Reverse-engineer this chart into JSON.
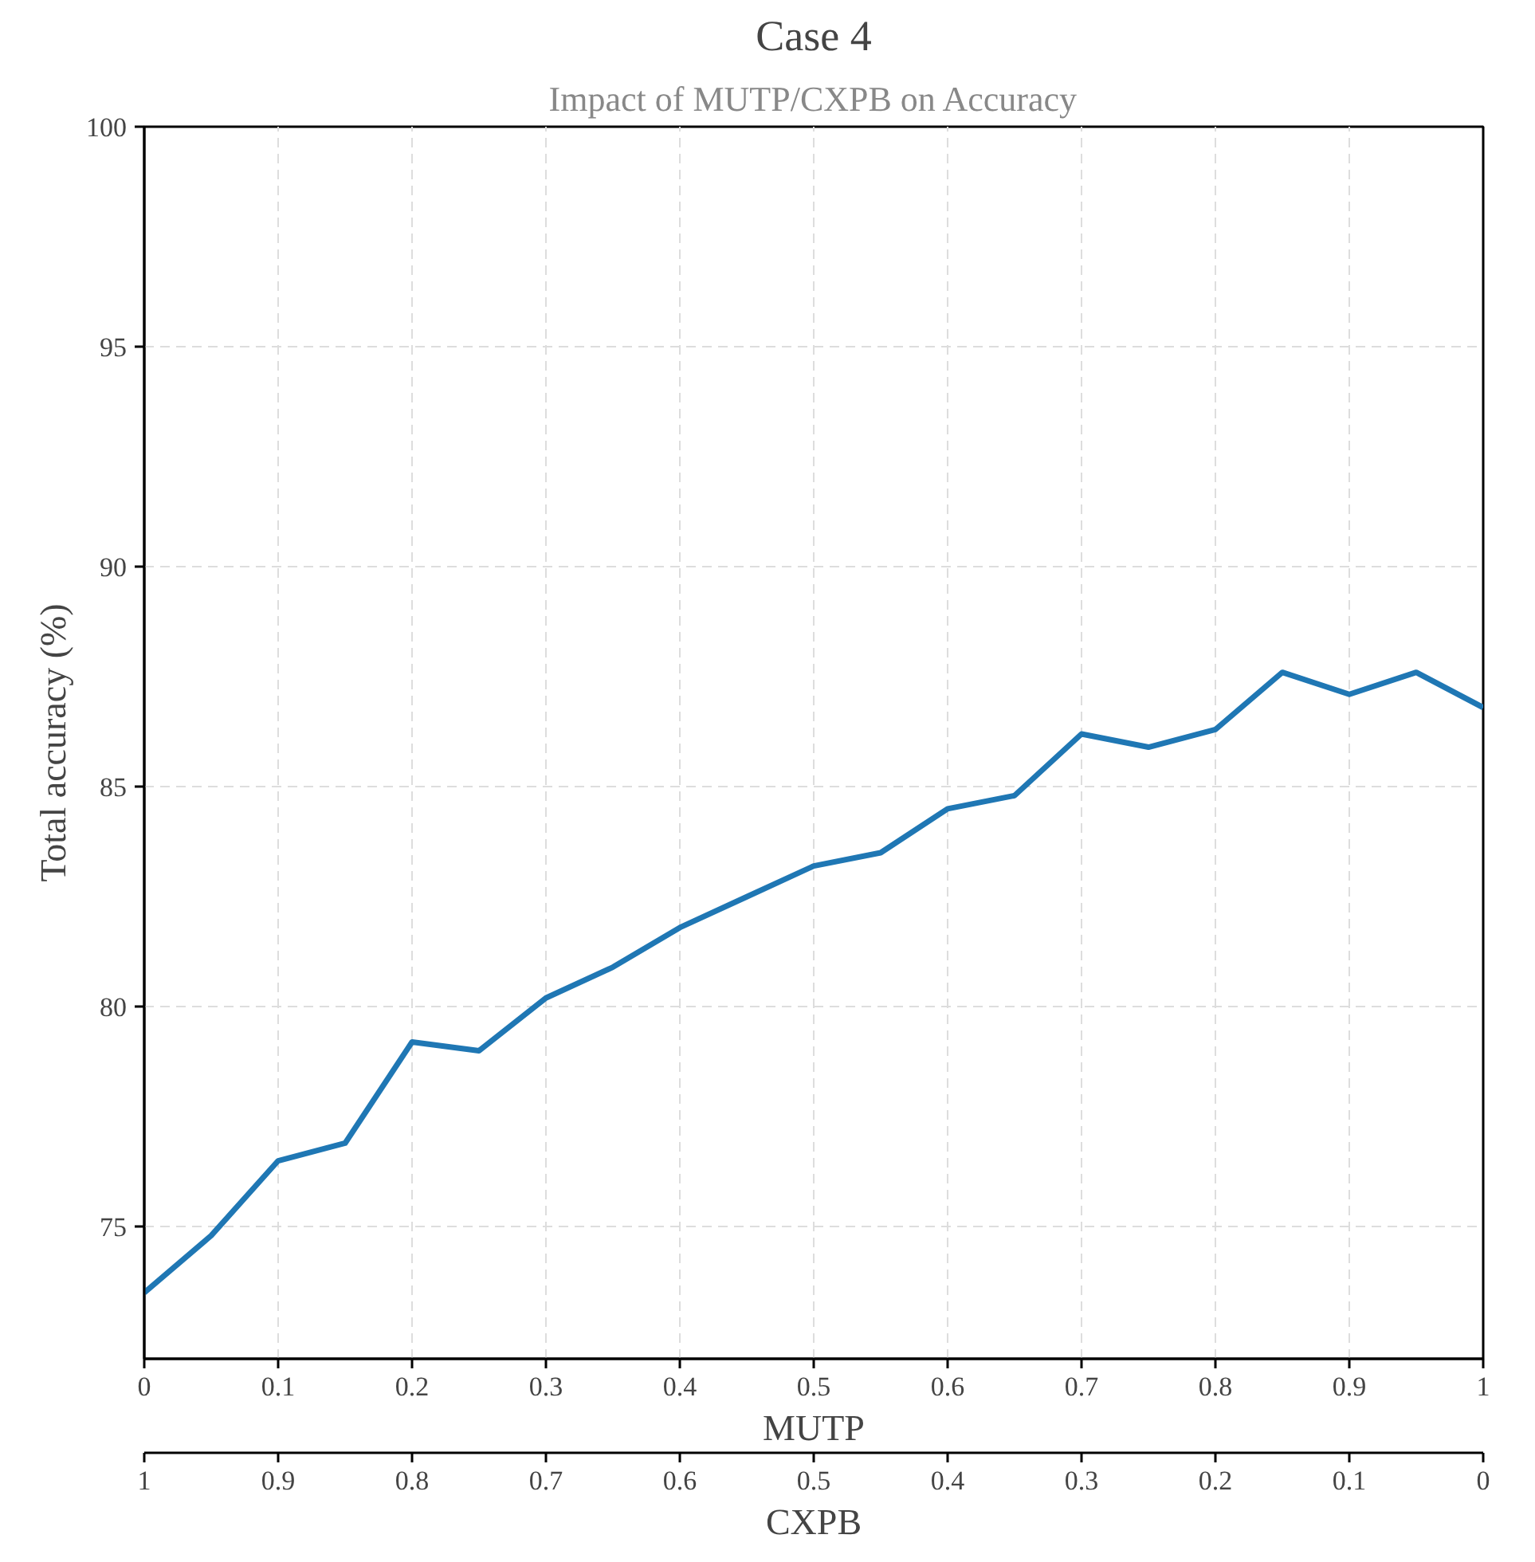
{
  "chart_data": {
    "type": "line",
    "title": "Case 4",
    "subtitle": "Impact of MUTP/CXPB on Accuracy",
    "xlabel": "MUTP",
    "ylabel": "Total accuracy (%)",
    "x2label": "CXPB",
    "x": [
      0,
      0.05,
      0.1,
      0.15,
      0.2,
      0.25,
      0.3,
      0.35,
      0.4,
      0.45,
      0.5,
      0.55,
      0.6,
      0.65,
      0.7,
      0.75,
      0.8,
      0.85,
      0.9,
      0.95,
      1.0
    ],
    "series": [
      {
        "color": "#1f77b4",
        "values": [
          73.5,
          74.8,
          76.5,
          76.9,
          79.2,
          79.0,
          80.2,
          80.9,
          81.8,
          82.5,
          83.2,
          83.5,
          84.5,
          84.8,
          86.2,
          85.9,
          86.3,
          87.6,
          87.1,
          87.6,
          86.8
        ]
      }
    ],
    "xlim": [
      0,
      1
    ],
    "xticks": [
      0,
      0.1,
      0.2,
      0.3,
      0.4,
      0.5,
      0.6,
      0.7,
      0.8,
      0.9,
      1
    ],
    "x2lim": [
      1,
      0
    ],
    "x2ticks": [
      1,
      0.9,
      0.8,
      0.7,
      0.6,
      0.5,
      0.4,
      0.3,
      0.2,
      0.1,
      0
    ],
    "ylim": [
      72,
      100
    ],
    "yticks": [
      75,
      80,
      85,
      90,
      95,
      100
    ],
    "grid": true,
    "line_style": "solid",
    "marker": "none"
  }
}
